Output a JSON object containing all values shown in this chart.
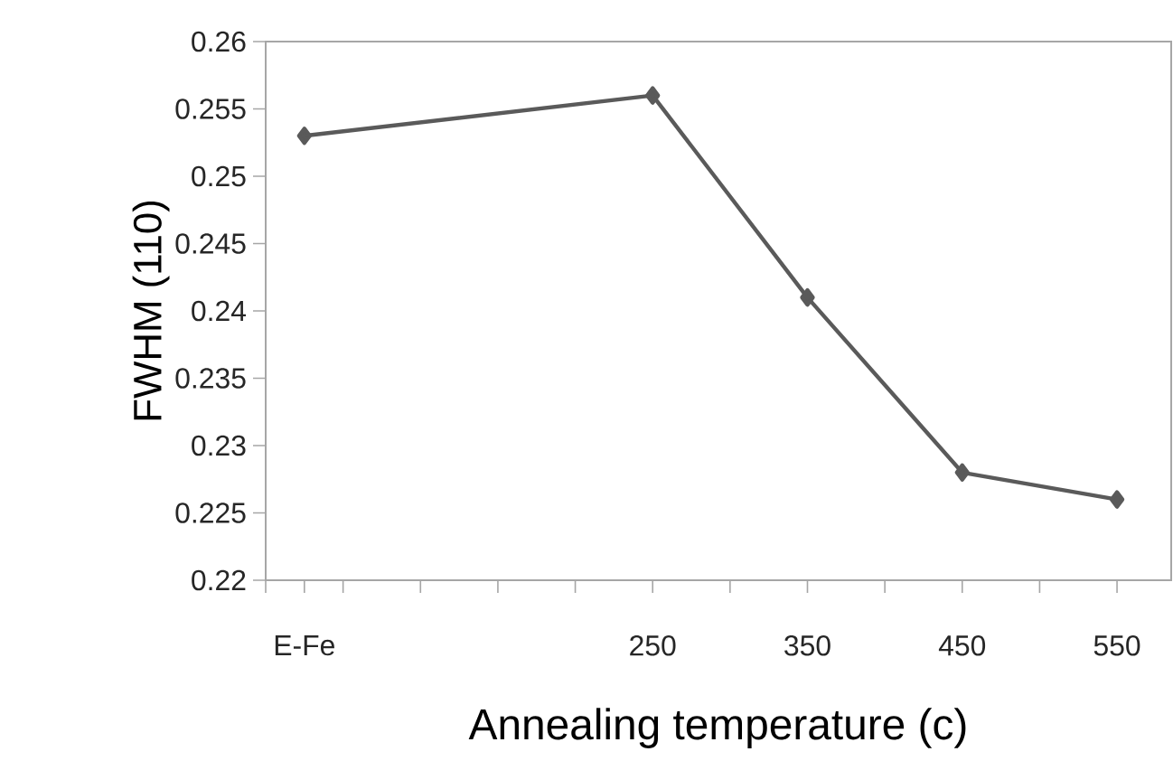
{
  "chart_data": {
    "type": "line",
    "xlabel": "Annealing temperature (c)",
    "ylabel": "FWHM (110)",
    "x": [
      25,
      250,
      350,
      450,
      550
    ],
    "series": [
      {
        "color": "#5a5a5a",
        "values": [
          0.253,
          0.256,
          0.241,
          0.228,
          0.226
        ]
      }
    ],
    "xlim": [
      0,
      585
    ],
    "xticks": [
      {
        "value": 0,
        "label": null
      },
      {
        "value": 25,
        "label": "E-Fe"
      },
      {
        "value": 50,
        "label": null
      },
      {
        "value": 100,
        "label": null
      },
      {
        "value": 150,
        "label": null
      },
      {
        "value": 200,
        "label": null
      },
      {
        "value": 250,
        "label": "250"
      },
      {
        "value": 300,
        "label": null
      },
      {
        "value": 350,
        "label": "350"
      },
      {
        "value": 400,
        "label": null
      },
      {
        "value": 450,
        "label": "450"
      },
      {
        "value": 500,
        "label": null
      },
      {
        "value": 550,
        "label": "550"
      }
    ],
    "ylim": [
      0.22,
      0.26
    ],
    "yticks": [
      0.22,
      0.225,
      0.23,
      0.235,
      0.24,
      0.245,
      0.25,
      0.255,
      0.26
    ],
    "marker": "diamond",
    "line_style": "solid"
  }
}
